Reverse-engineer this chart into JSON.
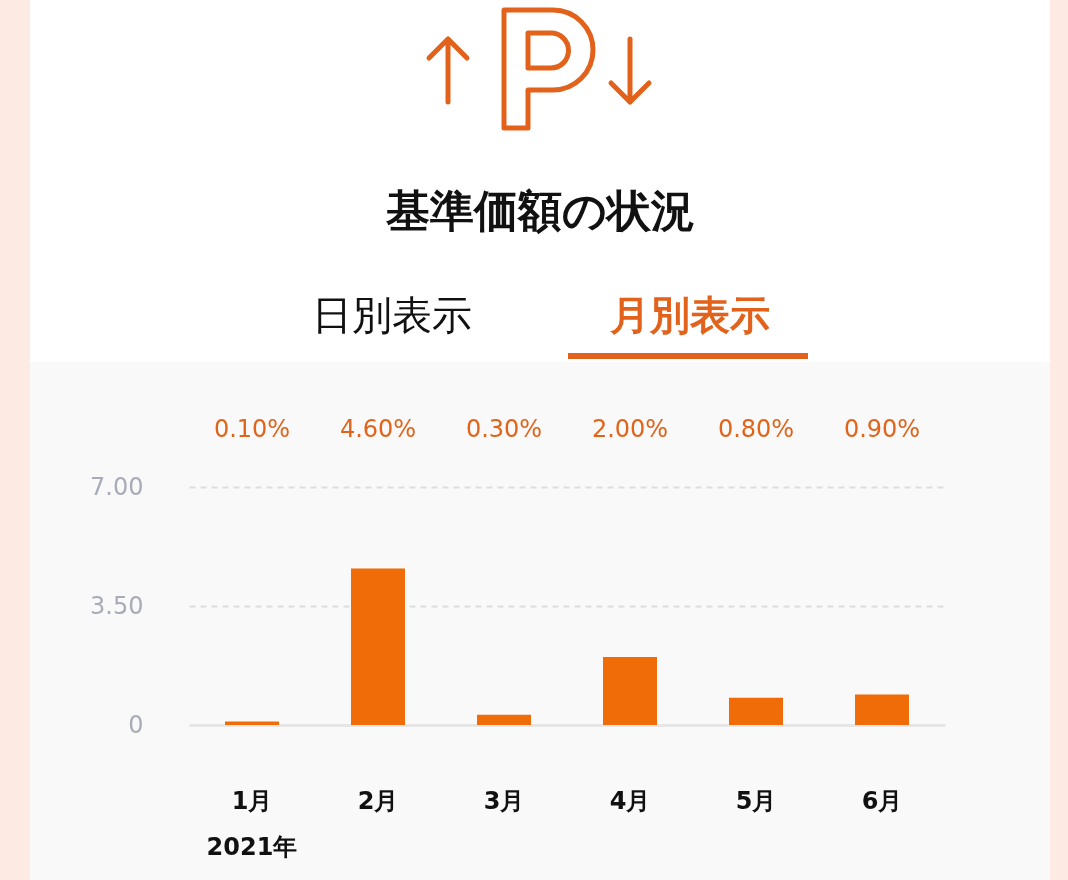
{
  "chart_data": {
    "type": "bar",
    "title": "基準価額の状況",
    "annotations": [
      "日別表示",
      "月別表示",
      "2021年"
    ],
    "categories": [
      "1月",
      "2月",
      "3月",
      "4月",
      "5月",
      "6月"
    ],
    "values": [
      0.1,
      4.6,
      0.3,
      2,
      0.8,
      0.9
    ],
    "value_labels": [
      "0.10%",
      "4.60%",
      "0.30%",
      "2.00%",
      "0.80%",
      "0.90%"
    ],
    "color": "#f06c08",
    "ylim": [
      0,
      7
    ],
    "yticks": [
      0,
      {
        "value": 3.5,
        "label": "3.50"
      },
      {
        "value": 7,
        "label": "7.00"
      }
    ],
    "grid": "y"
  }
}
